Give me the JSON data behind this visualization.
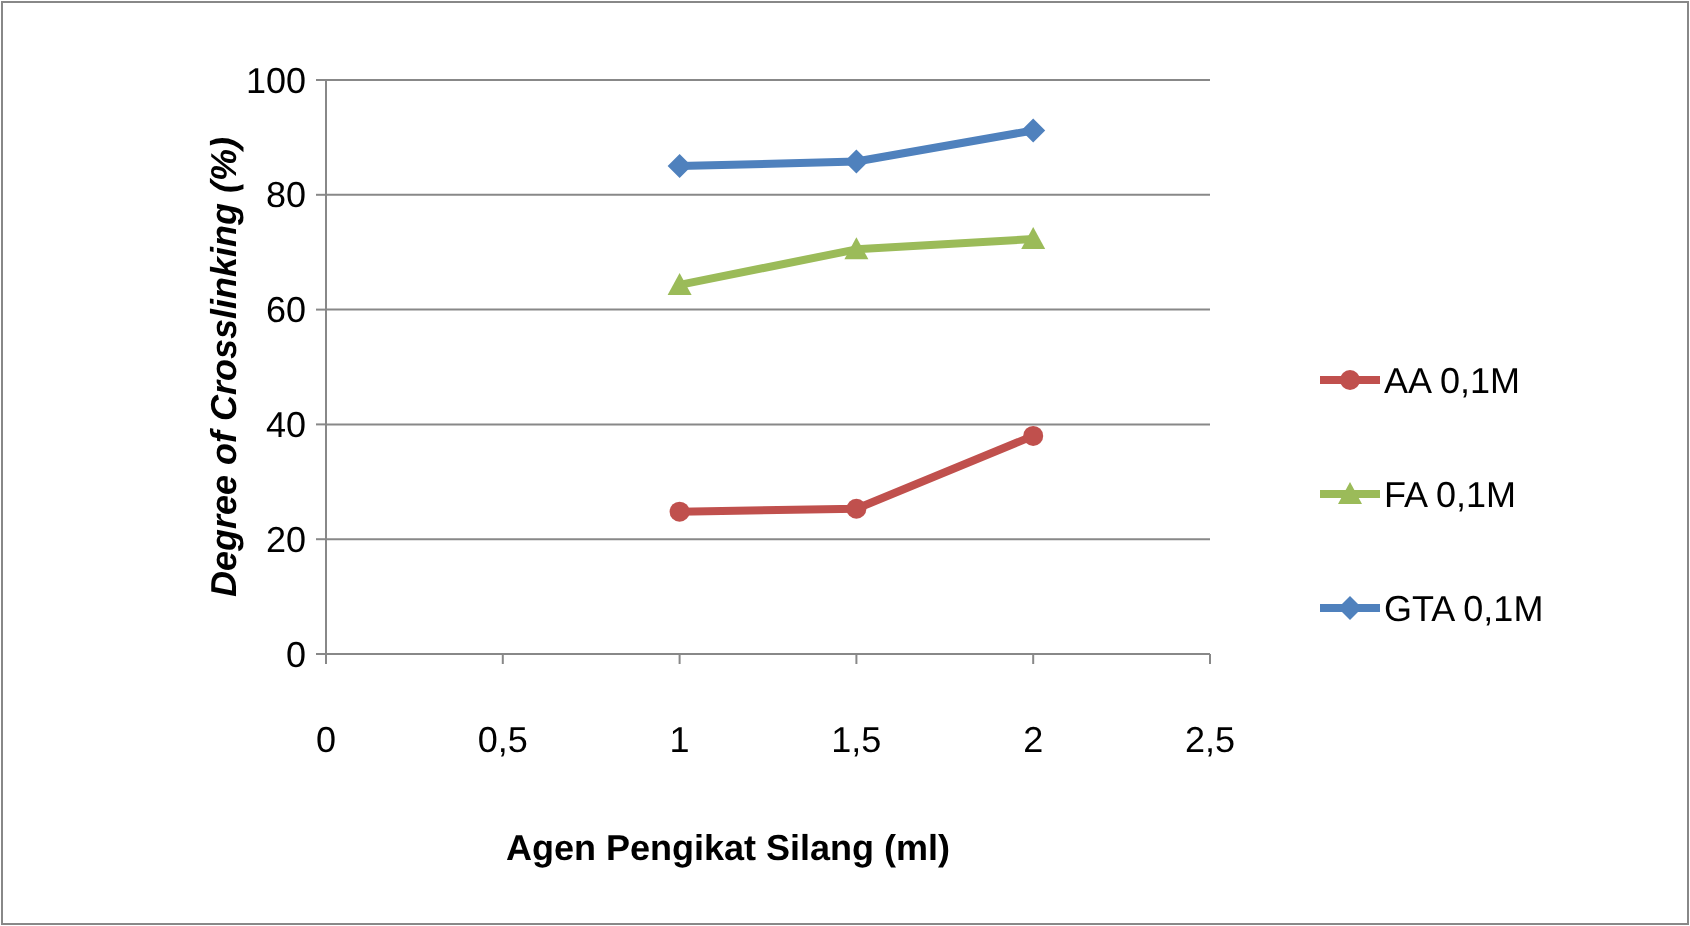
{
  "chart_data": {
    "type": "line",
    "xlabel": "Agen Pengikat Silang (ml)",
    "ylabel": "Degree of Crosslinking (%)",
    "xlim": [
      0,
      2.5
    ],
    "xticks": [
      0,
      {
        "value": 0.5,
        "label": "0,5"
      },
      1,
      {
        "value": 1.5,
        "label": "1,5"
      },
      2,
      {
        "value": 2.5,
        "label": "2,5"
      }
    ],
    "ylim": [
      0,
      100
    ],
    "yticks": [
      0,
      20,
      40,
      60,
      80,
      100
    ],
    "grid": "y",
    "legend": "right",
    "series": [
      {
        "name": "AA 0,1M",
        "color": "#c0504d",
        "marker": "circle",
        "x": [
          1,
          1.5,
          2
        ],
        "values": [
          24.8,
          25.3,
          38
        ]
      },
      {
        "name": "FA 0,1M",
        "color": "#9bbb59",
        "marker": "triangle",
        "x": [
          1,
          1.5,
          2
        ],
        "values": [
          64.3,
          70.5,
          72.3
        ]
      },
      {
        "name": "GTA 0,1M",
        "color": "#4f81bd",
        "marker": "diamond",
        "x": [
          1,
          1.5,
          2
        ],
        "values": [
          85,
          85.8,
          91.2
        ]
      }
    ]
  }
}
